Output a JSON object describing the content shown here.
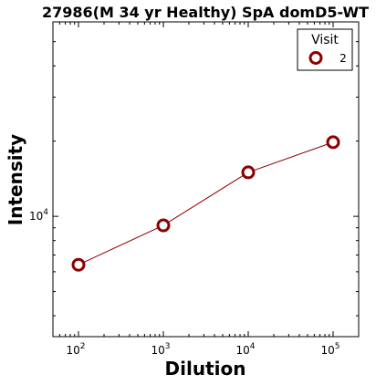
{
  "chart_data": {
    "type": "line",
    "title": "27986(M 34 yr Healthy) SpA domD5-WT",
    "xlabel": "Dilution",
    "ylabel": "Intensity",
    "x_scale": "log",
    "y_scale": "log",
    "xlim": [
      50,
      200000
    ],
    "ylim": [
      3300,
      60000
    ],
    "x_ticks": [
      {
        "value": 100,
        "base": "10",
        "exp": "2"
      },
      {
        "value": 1000,
        "base": "10",
        "exp": "3"
      },
      {
        "value": 10000,
        "base": "10",
        "exp": "4"
      },
      {
        "value": 100000,
        "base": "10",
        "exp": "5"
      }
    ],
    "y_ticks": [
      {
        "value": 10000,
        "base": "10",
        "exp": "4"
      }
    ],
    "legend": {
      "title": "Visit",
      "placement": "top-right"
    },
    "series": [
      {
        "name": "2",
        "color": "#8b0000",
        "marker": "open-circle",
        "x": [
          100,
          1000,
          10000,
          100000
        ],
        "y": [
          6400,
          9200,
          15000,
          19800
        ]
      }
    ],
    "grid": false
  }
}
